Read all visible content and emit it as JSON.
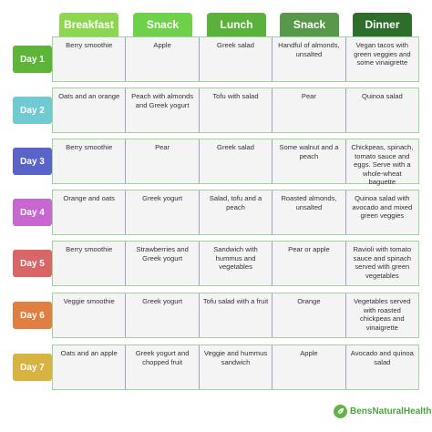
{
  "headers": [
    {
      "label": "Breakfast",
      "color": "#8dd64f"
    },
    {
      "label": "Snack",
      "color": "#6fd04a"
    },
    {
      "label": "Lunch",
      "color": "#5bb23b"
    },
    {
      "label": "Snack",
      "color": "#58984a"
    },
    {
      "label": "Dinner",
      "color": "#2e6e2b"
    }
  ],
  "days": [
    {
      "label": "Day 1",
      "color": "#5db439",
      "meals": [
        "Berry smoothie",
        "Apple",
        "Greek salad",
        "Handful of almonds, unsalted",
        "Vegan tacos with green veggies and some vinaigrette"
      ]
    },
    {
      "label": "Day 2",
      "color": "#6fcad1",
      "meals": [
        "Oats and an orange",
        "Peach with almonds and Greek yogurt",
        "Tofu with salad",
        "Pear",
        "Quinoa salad"
      ]
    },
    {
      "label": "Day 3",
      "color": "#5a63c8",
      "meals": [
        "Berry smoothie",
        "Pear",
        "Greek salad",
        "Some walnut and a peach",
        "Chickpeas, spinach, tomato sauce and eggs. Serve with a whole-wheat baguette"
      ]
    },
    {
      "label": "Day 4",
      "color": "#c867d0",
      "meals": [
        "Orange and oats",
        "Greek yogurt",
        "Salad, tofu and a peach",
        "Roasted almonds, unsalted",
        "Quinoa salad with avocado and mixed green veggies"
      ]
    },
    {
      "label": "Day 5",
      "color": "#d86666",
      "meals": [
        "Berry smoothie",
        "Strawberries and Greek yogurt",
        "Sandwich with hummus and vegetables",
        "Pear or apple",
        "Ravioli with tomato sauce and spinach served with green vegetables"
      ]
    },
    {
      "label": "Day 6",
      "color": "#e07f42",
      "meals": [
        "Veggie smoothie",
        "Greek yogurt",
        "Tofu salad with a fruit",
        "Orange",
        "Vegetables served with roasted chickpeas and vinaigrette"
      ]
    },
    {
      "label": "Day 7",
      "color": "#d8b341",
      "meals": [
        "Oats and an apple",
        "Greek yogurt and chopped fruit",
        "Veggie and hummus sandwich",
        "Apple",
        "Avocado and quinoa salad"
      ]
    }
  ],
  "logo": {
    "text": "BensNaturalHealth",
    "icon": "leaf-icon",
    "color": "#62b447"
  }
}
